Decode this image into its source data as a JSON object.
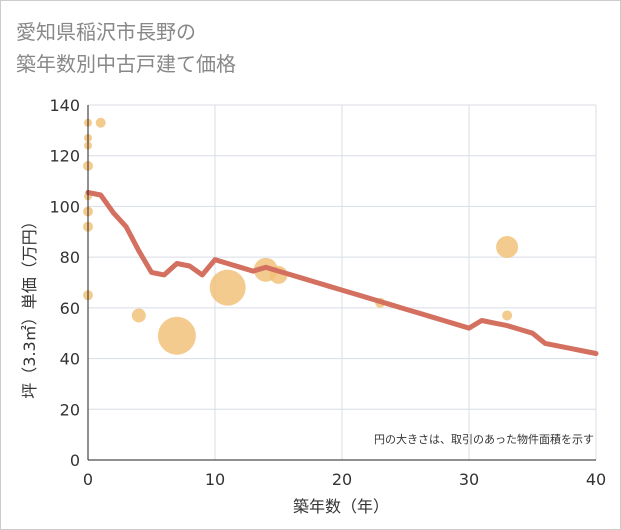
{
  "chart_data": {
    "type": "scatter",
    "title_lines": [
      "愛知県稲沢市長野の",
      "築年数別中古戸建て価格"
    ],
    "xlabel": "築年数（年）",
    "ylabel": "坪（3.3㎡）単価（万円）",
    "xlim": [
      0,
      40
    ],
    "ylim": [
      0,
      140
    ],
    "x_ticks": [
      0,
      10,
      20,
      30,
      40
    ],
    "y_ticks": [
      0,
      20,
      40,
      60,
      80,
      100,
      120,
      140
    ],
    "grid": true,
    "note": "円の大きさは、取引のあった物件面積を示す",
    "colors": {
      "bubble": "#f2c27a",
      "trend": "#d37060",
      "grid": "#d8dde6",
      "axis": "#222222"
    },
    "bubbles": [
      {
        "x": 0,
        "y": 133,
        "size": 4
      },
      {
        "x": 0,
        "y": 127,
        "size": 4
      },
      {
        "x": 0,
        "y": 124,
        "size": 4
      },
      {
        "x": 0,
        "y": 116,
        "size": 5
      },
      {
        "x": 0,
        "y": 104,
        "size": 4
      },
      {
        "x": 0,
        "y": 98,
        "size": 5
      },
      {
        "x": 0,
        "y": 92,
        "size": 5
      },
      {
        "x": 0,
        "y": 65,
        "size": 5
      },
      {
        "x": 1,
        "y": 133,
        "size": 5
      },
      {
        "x": 4,
        "y": 57,
        "size": 7
      },
      {
        "x": 7,
        "y": 49,
        "size": 19
      },
      {
        "x": 11,
        "y": 68,
        "size": 18
      },
      {
        "x": 14,
        "y": 75,
        "size": 12
      },
      {
        "x": 15,
        "y": 73,
        "size": 9
      },
      {
        "x": 23,
        "y": 62,
        "size": 5
      },
      {
        "x": 33,
        "y": 84,
        "size": 11
      },
      {
        "x": 33,
        "y": 57,
        "size": 5
      }
    ],
    "trend": {
      "x": [
        0,
        1,
        2,
        3,
        4,
        5,
        6,
        7,
        8,
        9,
        10,
        11,
        12,
        13,
        14,
        15,
        16,
        17,
        18,
        19,
        20,
        21,
        22,
        23,
        24,
        25,
        26,
        27,
        28,
        29,
        30,
        31,
        32,
        33,
        34,
        35,
        36,
        37,
        38,
        39,
        40
      ],
      "y": [
        105.5,
        104.5,
        97.5,
        92,
        82.5,
        74,
        73,
        77.5,
        76.5,
        73,
        79,
        77.5,
        76,
        74.5,
        76,
        74.5,
        73,
        71.5,
        70,
        68.5,
        67,
        65.5,
        64,
        62.5,
        61,
        59.5,
        58,
        56.5,
        55,
        53.5,
        52,
        55,
        54,
        53,
        51.5,
        50,
        46,
        45,
        44,
        43,
        42
      ]
    }
  }
}
